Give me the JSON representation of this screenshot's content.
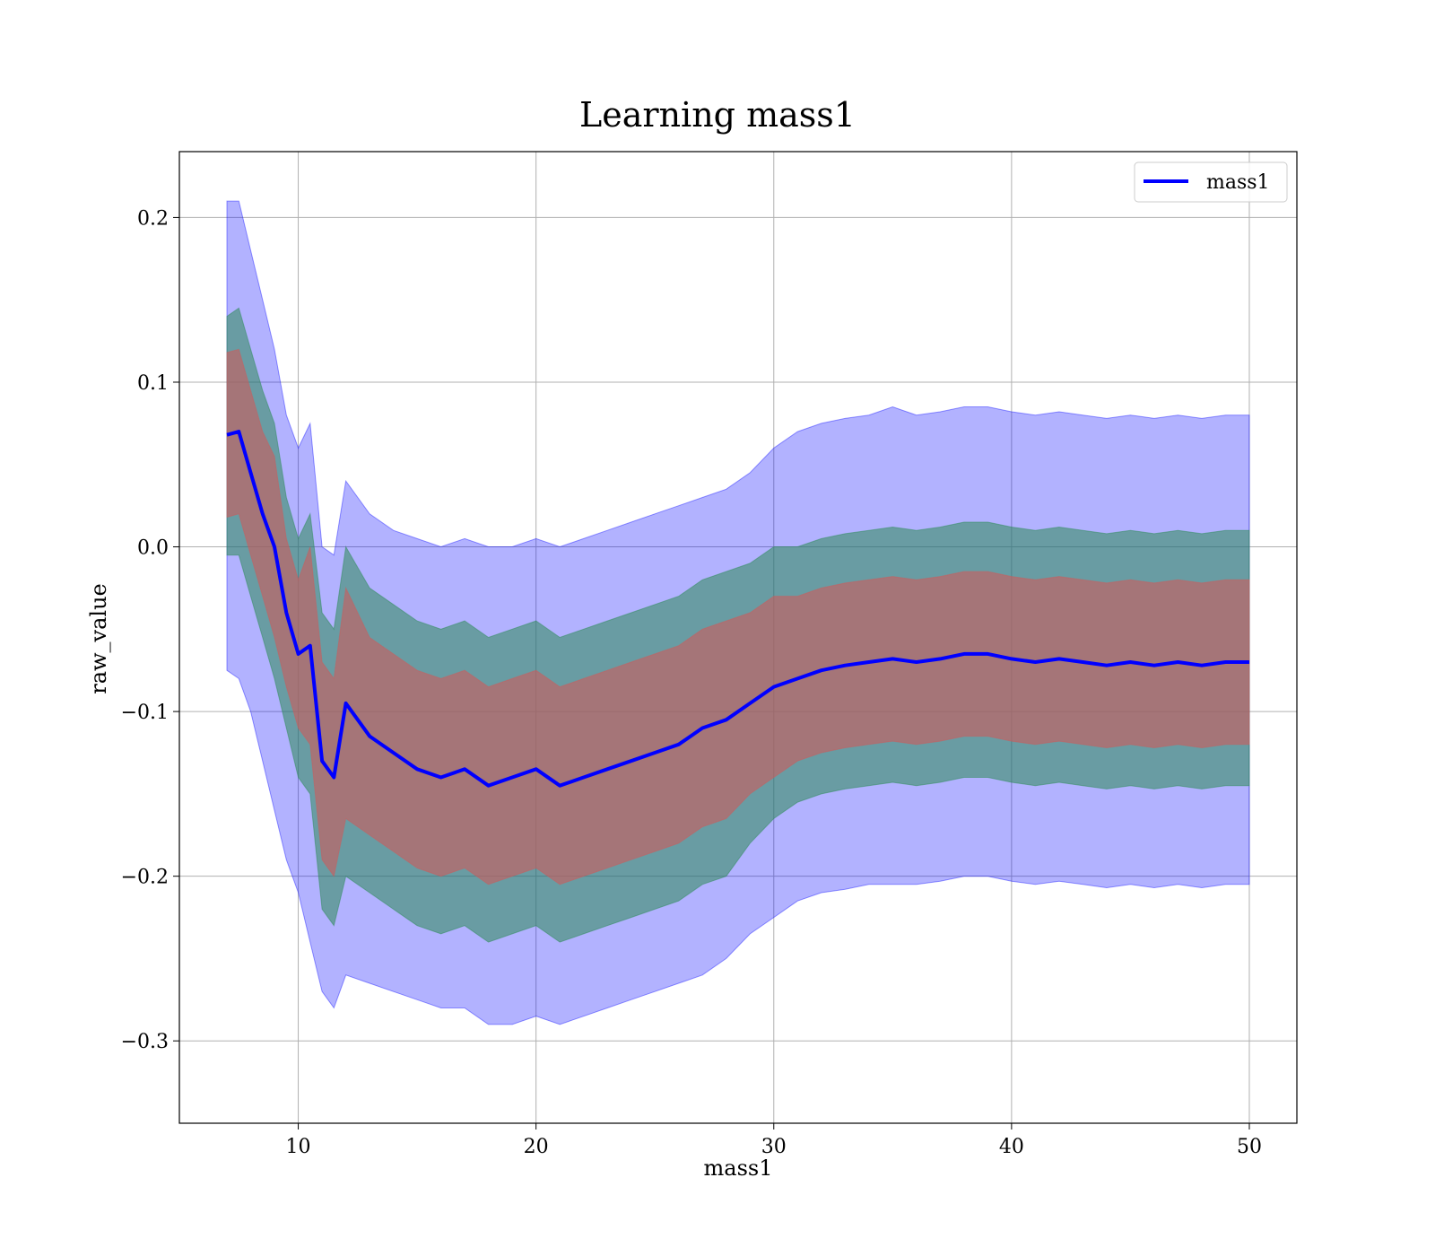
{
  "chart_data": {
    "type": "line",
    "title": "Learning mass1",
    "xlabel": "mass1",
    "ylabel": "raw_value",
    "xlim": [
      5,
      52
    ],
    "ylim": [
      -0.35,
      0.24
    ],
    "x_ticks": [
      10,
      20,
      30,
      40,
      50
    ],
    "x_tick_labels": [
      "10",
      "20",
      "30",
      "40",
      "50"
    ],
    "y_ticks": [
      -0.3,
      -0.2,
      -0.1,
      0.0,
      0.1,
      0.2
    ],
    "y_tick_labels": [
      "−0.3",
      "−0.2",
      "−0.1",
      "0.0",
      "0.1",
      "0.2"
    ],
    "grid": true,
    "legend": {
      "position": "top-right",
      "entries": [
        "mass1"
      ]
    },
    "colors": {
      "mean_line": "#0000ff",
      "band_outer": "#0000ff",
      "band_middle": "#2e8b57",
      "band_inner": "#cd5c5c"
    },
    "series": [
      {
        "name": "mass1",
        "x": [
          7,
          7.5,
          8,
          8.5,
          9,
          9.5,
          10,
          10.5,
          11,
          11.5,
          12,
          13,
          14,
          15,
          16,
          17,
          18,
          19,
          20,
          21,
          22,
          23,
          24,
          25,
          26,
          27,
          28,
          29,
          30,
          31,
          32,
          33,
          34,
          35,
          36,
          37,
          38,
          39,
          40,
          41,
          42,
          43,
          44,
          45,
          46,
          47,
          48,
          49,
          50
        ],
        "y": [
          0.068,
          0.07,
          0.045,
          0.02,
          0.0,
          -0.04,
          -0.065,
          -0.06,
          -0.13,
          -0.14,
          -0.095,
          -0.115,
          -0.125,
          -0.135,
          -0.14,
          -0.135,
          -0.145,
          -0.14,
          -0.135,
          -0.145,
          -0.14,
          -0.135,
          -0.13,
          -0.125,
          -0.12,
          -0.11,
          -0.105,
          -0.095,
          -0.085,
          -0.08,
          -0.075,
          -0.072,
          -0.07,
          -0.068,
          -0.07,
          -0.068,
          -0.065,
          -0.065,
          -0.068,
          -0.07,
          -0.068,
          -0.07,
          -0.072,
          -0.07,
          -0.072,
          -0.07,
          -0.072,
          -0.07,
          -0.07
        ],
        "band_inner": {
          "lower": [
            0.018,
            0.02,
            -0.005,
            -0.03,
            -0.055,
            -0.085,
            -0.11,
            -0.12,
            -0.19,
            -0.2,
            -0.165,
            -0.175,
            -0.185,
            -0.195,
            -0.2,
            -0.195,
            -0.205,
            -0.2,
            -0.195,
            -0.205,
            -0.2,
            -0.195,
            -0.19,
            -0.185,
            -0.18,
            -0.17,
            -0.165,
            -0.15,
            -0.14,
            -0.13,
            -0.125,
            -0.122,
            -0.12,
            -0.118,
            -0.12,
            -0.118,
            -0.115,
            -0.115,
            -0.118,
            -0.12,
            -0.118,
            -0.12,
            -0.122,
            -0.12,
            -0.122,
            -0.12,
            -0.122,
            -0.12,
            -0.12
          ],
          "upper": [
            0.118,
            0.12,
            0.095,
            0.07,
            0.055,
            0.005,
            -0.02,
            -0.0,
            -0.07,
            -0.08,
            -0.025,
            -0.055,
            -0.065,
            -0.075,
            -0.08,
            -0.075,
            -0.085,
            -0.08,
            -0.075,
            -0.085,
            -0.08,
            -0.075,
            -0.07,
            -0.065,
            -0.06,
            -0.05,
            -0.045,
            -0.04,
            -0.03,
            -0.03,
            -0.025,
            -0.022,
            -0.02,
            -0.018,
            -0.02,
            -0.018,
            -0.015,
            -0.015,
            -0.018,
            -0.02,
            -0.018,
            -0.02,
            -0.022,
            -0.02,
            -0.022,
            -0.02,
            -0.022,
            -0.02,
            -0.02
          ]
        },
        "band_middle": {
          "lower": [
            -0.005,
            -0.005,
            -0.03,
            -0.055,
            -0.08,
            -0.11,
            -0.14,
            -0.15,
            -0.22,
            -0.23,
            -0.2,
            -0.21,
            -0.22,
            -0.23,
            -0.235,
            -0.23,
            -0.24,
            -0.235,
            -0.23,
            -0.24,
            -0.235,
            -0.23,
            -0.225,
            -0.22,
            -0.215,
            -0.205,
            -0.2,
            -0.18,
            -0.165,
            -0.155,
            -0.15,
            -0.147,
            -0.145,
            -0.143,
            -0.145,
            -0.143,
            -0.14,
            -0.14,
            -0.143,
            -0.145,
            -0.143,
            -0.145,
            -0.147,
            -0.145,
            -0.147,
            -0.145,
            -0.147,
            -0.145,
            -0.145
          ],
          "upper": [
            0.14,
            0.145,
            0.12,
            0.095,
            0.075,
            0.03,
            0.005,
            0.02,
            -0.04,
            -0.05,
            0.0,
            -0.025,
            -0.035,
            -0.045,
            -0.05,
            -0.045,
            -0.055,
            -0.05,
            -0.045,
            -0.055,
            -0.05,
            -0.045,
            -0.04,
            -0.035,
            -0.03,
            -0.02,
            -0.015,
            -0.01,
            0.0,
            0.0,
            0.005,
            0.008,
            0.01,
            0.012,
            0.01,
            0.012,
            0.015,
            0.015,
            0.012,
            0.01,
            0.012,
            0.01,
            0.008,
            0.01,
            0.008,
            0.01,
            0.008,
            0.01,
            0.01
          ]
        },
        "band_outer": {
          "lower": [
            -0.075,
            -0.08,
            -0.1,
            -0.13,
            -0.16,
            -0.19,
            -0.21,
            -0.24,
            -0.27,
            -0.28,
            -0.26,
            -0.265,
            -0.27,
            -0.275,
            -0.28,
            -0.28,
            -0.29,
            -0.29,
            -0.285,
            -0.29,
            -0.285,
            -0.28,
            -0.275,
            -0.27,
            -0.265,
            -0.26,
            -0.25,
            -0.235,
            -0.225,
            -0.215,
            -0.21,
            -0.208,
            -0.205,
            -0.205,
            -0.205,
            -0.203,
            -0.2,
            -0.2,
            -0.203,
            -0.205,
            -0.203,
            -0.205,
            -0.207,
            -0.205,
            -0.207,
            -0.205,
            -0.207,
            -0.205,
            -0.205
          ],
          "upper": [
            0.21,
            0.21,
            0.18,
            0.15,
            0.12,
            0.08,
            0.06,
            0.075,
            0.0,
            -0.005,
            0.04,
            0.02,
            0.01,
            0.005,
            0.0,
            0.005,
            0.0,
            0.0,
            0.005,
            0.0,
            0.005,
            0.01,
            0.015,
            0.02,
            0.025,
            0.03,
            0.035,
            0.045,
            0.06,
            0.07,
            0.075,
            0.078,
            0.08,
            0.085,
            0.08,
            0.082,
            0.085,
            0.085,
            0.082,
            0.08,
            0.082,
            0.08,
            0.078,
            0.08,
            0.078,
            0.08,
            0.078,
            0.08,
            0.08
          ]
        }
      }
    ]
  }
}
